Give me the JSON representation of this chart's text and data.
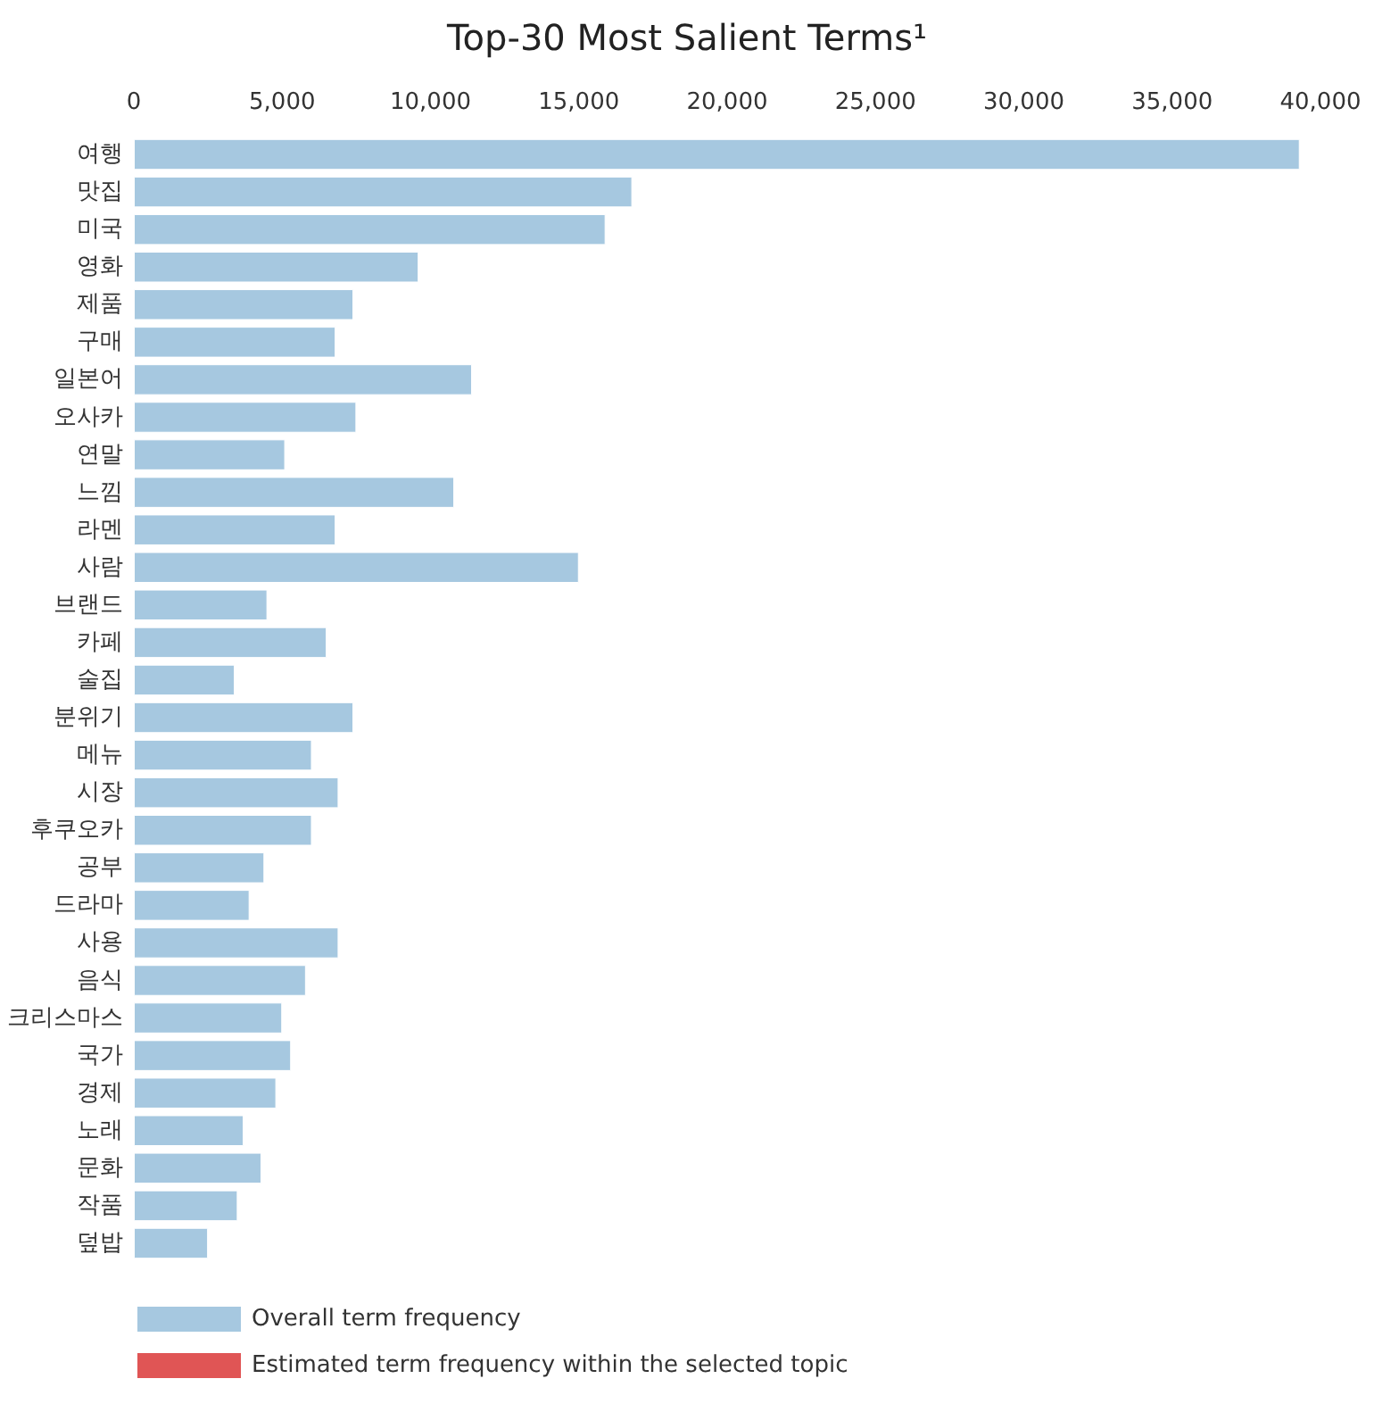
{
  "chart_data": {
    "type": "bar",
    "orientation": "horizontal",
    "title": "Top-30 Most Salient Terms¹",
    "categories": [
      "여행",
      "맛집",
      "미국",
      "영화",
      "제품",
      "구매",
      "일본어",
      "오사카",
      "연말",
      "느낌",
      "라멘",
      "사람",
      "브랜드",
      "카페",
      "술집",
      "분위기",
      "메뉴",
      "시장",
      "후쿠오카",
      "공부",
      "드라마",
      "사용",
      "음식",
      "크리스마스",
      "국가",
      "경제",
      "노래",
      "문화",
      "작품",
      "덮밥"
    ],
    "series": [
      {
        "name": "Overall term frequency",
        "color": "#a6c8e0",
        "values": [
          39300,
          16800,
          15900,
          9600,
          7400,
          6800,
          11400,
          7500,
          5100,
          10800,
          6800,
          15000,
          4500,
          6500,
          3400,
          7400,
          6000,
          6900,
          6000,
          4400,
          3900,
          6900,
          5800,
          5000,
          5300,
          4800,
          3700,
          4300,
          3500,
          2500
        ]
      },
      {
        "name": "Estimated term frequency within the selected topic",
        "color": "#e05555",
        "values": [
          null,
          null,
          null,
          null,
          null,
          null,
          null,
          null,
          null,
          null,
          null,
          null,
          null,
          null,
          null,
          null,
          null,
          null,
          null,
          null,
          null,
          null,
          null,
          null,
          null,
          null,
          null,
          null,
          null,
          null
        ]
      }
    ],
    "xlim": [
      0,
      40000
    ],
    "xticks": [
      0,
      {
        "value": 5000,
        "label": "5,000"
      },
      {
        "value": 10000,
        "label": "10,000"
      },
      {
        "value": 15000,
        "label": "15,000"
      },
      {
        "value": 20000,
        "label": "20,000"
      },
      {
        "value": 25000,
        "label": "25,000"
      },
      {
        "value": 30000,
        "label": "30,000"
      },
      {
        "value": 35000,
        "label": "35,000"
      },
      {
        "value": 40000,
        "label": "40,000"
      }
    ],
    "grid": false,
    "legend": "bottom left"
  }
}
